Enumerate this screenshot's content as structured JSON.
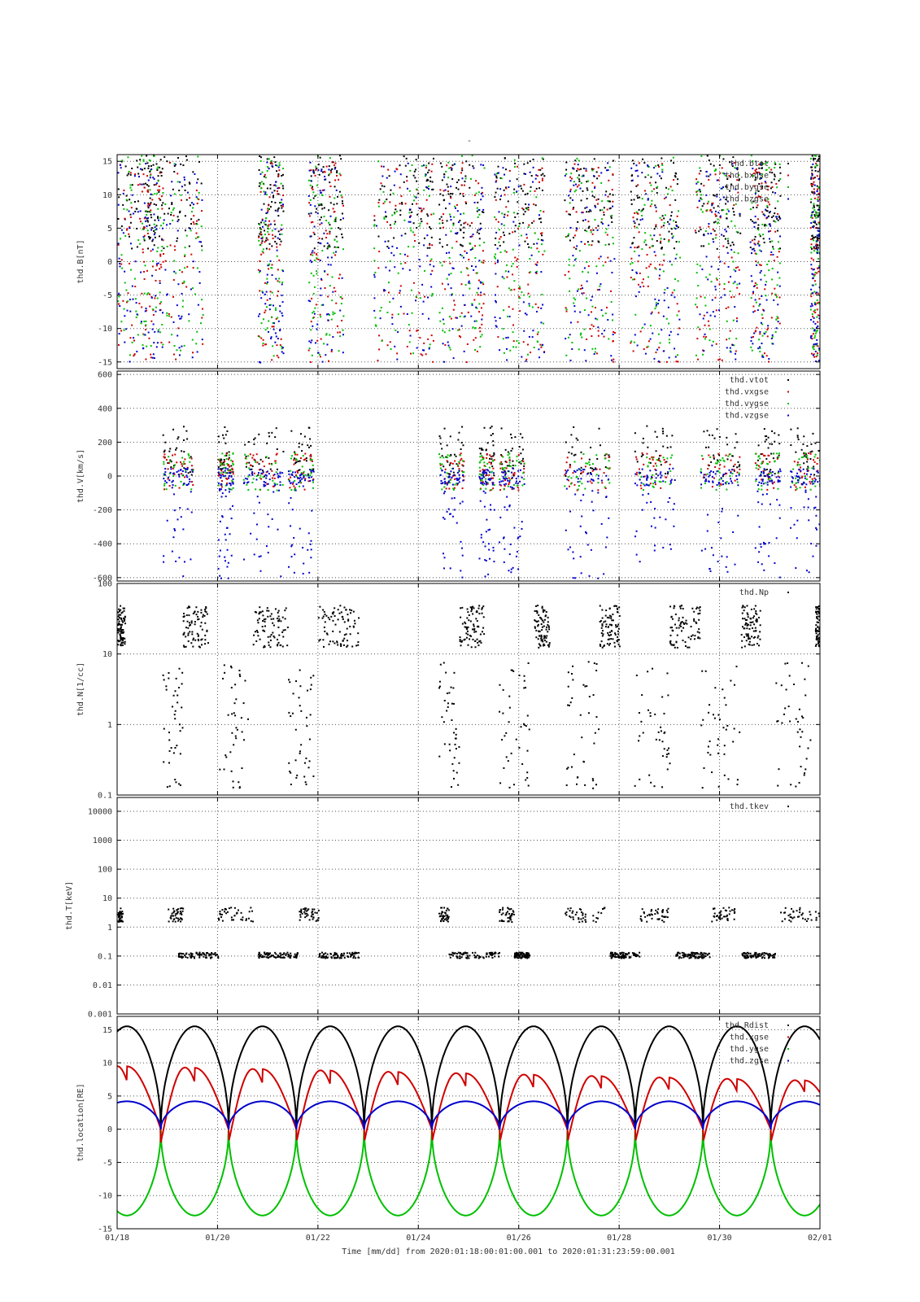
{
  "figure": {
    "title": "-",
    "xlabel": "Time [mm/dd]",
    "from_label": "from",
    "from": "2020:01:18:00:01:00.001",
    "to_label": "to",
    "to": "2020:01:31:23:59:00.001"
  },
  "chart_data": [
    {
      "type": "scatter",
      "ylabel": "thd.B[nT]",
      "ylim": [
        -16,
        16
      ],
      "yscale": "linear",
      "yticks": [
        -15,
        -10,
        -5,
        0,
        5,
        10,
        15
      ],
      "x_unit": "days since 01/18",
      "legend": [
        "thd.btot",
        "thd.bxgse",
        "thd.bygse",
        "thd.bzgse"
      ],
      "colors": [
        "#000000",
        "#d00000",
        "#00c000",
        "#0000cc"
      ],
      "legend_position": "top-right"
    },
    {
      "type": "scatter",
      "ylabel": "thd.V[km/s]",
      "ylim": [
        -620,
        620
      ],
      "yscale": "linear",
      "yticks": [
        -600,
        -400,
        -200,
        0,
        200,
        400,
        600
      ],
      "legend": [
        "thd.vtot",
        "thd.vxgse",
        "thd.vygse",
        "thd.vzgse"
      ],
      "colors": [
        "#000000",
        "#d00000",
        "#00c000",
        "#0000cc"
      ],
      "legend_position": "top-right"
    },
    {
      "type": "scatter",
      "ylabel": "thd.N[1/cc]",
      "ylim": [
        0.1,
        100
      ],
      "yscale": "log",
      "yticks": [
        0.1,
        1,
        10,
        100
      ],
      "ytick_labels": [
        "0.1",
        "1",
        "10",
        "100"
      ],
      "legend": [
        "thd.Np"
      ],
      "colors": [
        "#000000"
      ],
      "legend_position": "top-right"
    },
    {
      "type": "scatter",
      "ylabel": "thd.T[keV]",
      "ylim": [
        0.001,
        30000
      ],
      "yscale": "log",
      "yticks": [
        0.001,
        0.01,
        0.1,
        1,
        10,
        100,
        1000,
        10000
      ],
      "ytick_labels": [
        "0.001",
        "0.01",
        "0.1",
        "1",
        "10",
        "100",
        "1000",
        "10000"
      ],
      "legend": [
        "thd.tkev"
      ],
      "colors": [
        "#000000"
      ],
      "legend_position": "top-right"
    },
    {
      "type": "line",
      "ylabel": "thd.location[RE]",
      "ylim": [
        -15,
        17
      ],
      "yscale": "linear",
      "yticks": [
        -15,
        -10,
        -5,
        0,
        5,
        10,
        15
      ],
      "legend": [
        "thd.Rdist",
        "thd.xgse",
        "thd.ygse",
        "thd.zgse"
      ],
      "colors": [
        "#000000",
        "#d00000",
        "#00c000",
        "#0000cc"
      ],
      "legend_position": "top-right",
      "orbit": {
        "perigee_days_since_0118": [
          0.87,
          2.22,
          3.57,
          4.92,
          6.27,
          7.62,
          8.97,
          10.32,
          11.67,
          13.02
        ],
        "rdist_max": 15.5,
        "x_max_start": 9.5,
        "x_max_end": 7.3,
        "x_min": -2,
        "y_min": -13,
        "z_max": 4.2
      }
    }
  ],
  "x_axis": {
    "xlim_days": [
      0,
      14
    ],
    "ticks_days": [
      0,
      2,
      4,
      6,
      8,
      10,
      12,
      14
    ],
    "tick_labels": [
      "01/18",
      "01/20",
      "01/22",
      "01/24",
      "01/26",
      "01/28",
      "01/30",
      "02/01"
    ]
  }
}
